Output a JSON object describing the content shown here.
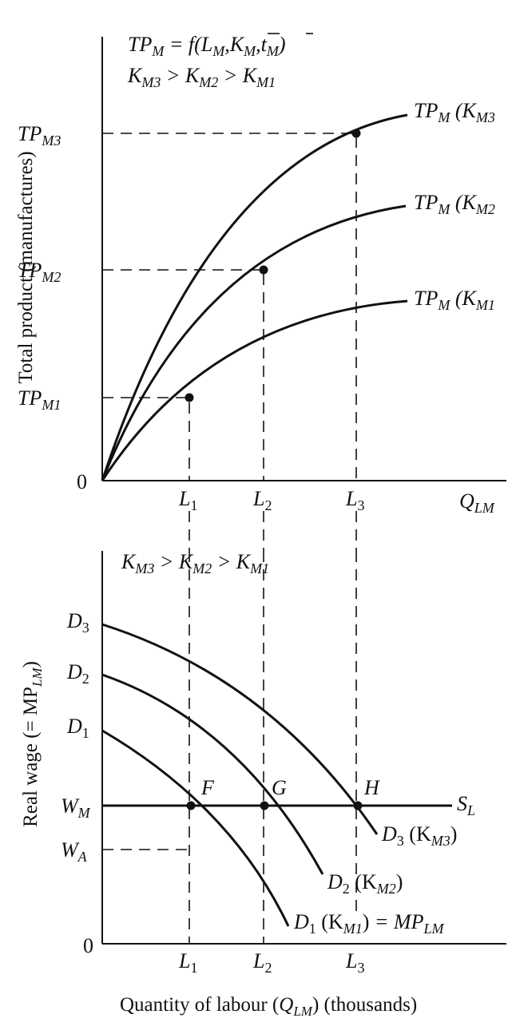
{
  "top_panel": {
    "formula_lhs": "TP",
    "formula_lhs_sub": "M",
    "formula_rhs_prefix": " = f(L",
    "formula_rhs_sub1": "M",
    "formula_rhs_mid": ",K",
    "formula_rhs_sub2": "M",
    "formula_rhs_mid2": ",t",
    "formula_rhs_sub3": "M",
    "formula_rhs_end": ")",
    "ordering_text": "K",
    "ordering_parts": [
      "M3",
      " > K",
      "M2",
      " > K",
      "M1"
    ],
    "y_axis_title": "Total product (manufactures)",
    "x_axis_label": "Q",
    "x_axis_label_sub": "LM",
    "origin_label": "0",
    "y_ticks": [
      {
        "main": "TP",
        "sub": "M3"
      },
      {
        "main": "TP",
        "sub": "M2"
      },
      {
        "main": "TP",
        "sub": "M1"
      }
    ],
    "x_ticks": [
      {
        "main": "L",
        "sub": "1"
      },
      {
        "main": "L",
        "sub": "2"
      },
      {
        "main": "L",
        "sub": "3"
      }
    ],
    "curve_labels": [
      {
        "main": "TP",
        "sub": "M",
        "paren": " (K",
        "sub2": "M3"
      },
      {
        "main": "TP",
        "sub": "M",
        "paren": " (K",
        "sub2": "M2"
      },
      {
        "main": "TP",
        "sub": "M",
        "paren": " (K",
        "sub2": "M1"
      }
    ]
  },
  "bottom_panel": {
    "ordering_parts": [
      "K",
      "M3",
      " > K",
      "M2",
      " > K",
      "M1"
    ],
    "y_axis_title_prefix": "Real wage (= MP",
    "y_axis_title_sub": "LM",
    "y_axis_title_suffix": ")",
    "origin_label": "0",
    "y_ticks": [
      {
        "main": "D",
        "sub": "3"
      },
      {
        "main": "D",
        "sub": "2"
      },
      {
        "main": "D",
        "sub": "1"
      },
      {
        "main": "W",
        "sub": "M"
      },
      {
        "main": "W",
        "sub": "A"
      }
    ],
    "x_ticks": [
      {
        "main": "L",
        "sub": "1"
      },
      {
        "main": "L",
        "sub": "2"
      },
      {
        "main": "L",
        "sub": "3"
      }
    ],
    "point_labels": [
      "F",
      "G",
      "H"
    ],
    "supply_label": {
      "main": "S",
      "sub": "L"
    },
    "demand_labels": [
      {
        "main": "D",
        "sub": "3",
        "paren": " (K",
        "sub2": "M3",
        "end": ")",
        "tail": ""
      },
      {
        "main": "D",
        "sub": "2",
        "paren": " (K",
        "sub2": "M2",
        "end": ")",
        "tail": ""
      },
      {
        "main": "D",
        "sub": "1",
        "paren": " (K",
        "sub2": "M1",
        "end": ")",
        "tail": " = MP",
        "tail_sub": "LM"
      }
    ],
    "x_axis_title_prefix": "Quantity of labour (",
    "x_axis_title_var": "Q",
    "x_axis_title_sub": "LM",
    "x_axis_title_suffix": ") (thousands)"
  }
}
